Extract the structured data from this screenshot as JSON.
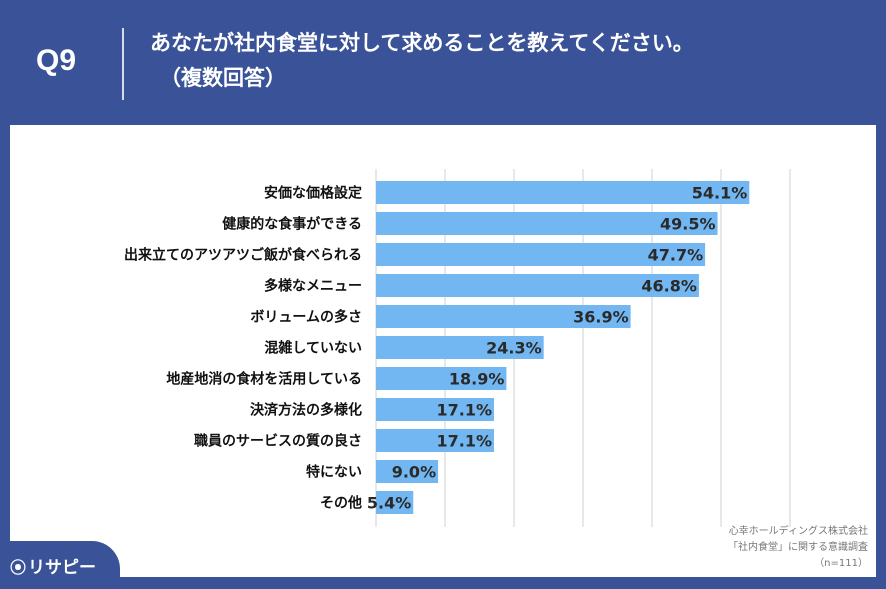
{
  "header": {
    "qnum": "Q9",
    "title": "あなたが社内食堂に対して求めることを教えてください。",
    "subtitle": "（複数回答）"
  },
  "source": {
    "line1": "心幸ホールディングス株式会社",
    "line2": "「社内食堂」に関する意識調査",
    "line3": "（n=111）"
  },
  "logo": {
    "text": "リサピー",
    "icon": "pin-icon"
  },
  "colors": {
    "background": "#3a5297",
    "bar": "#72b7f2",
    "grid": "#d0d0d0"
  },
  "chart_data": {
    "type": "bar",
    "orientation": "horizontal",
    "categories": [
      "安価な価格設定",
      "健康的な食事ができる",
      "出来立てのアツアツご飯が食べられる",
      "多様なメニュー",
      "ボリュームの多さ",
      "混雑していない",
      "地産地消の食材を活用している",
      "決済方法の多様化",
      "職員のサービスの質の良さ",
      "特にない",
      "その他"
    ],
    "values": [
      54.1,
      49.5,
      47.7,
      46.8,
      36.9,
      24.3,
      18.9,
      17.1,
      17.1,
      9.0,
      5.4
    ],
    "value_labels": [
      "54.1%",
      "49.5%",
      "47.7%",
      "46.8%",
      "36.9%",
      "24.3%",
      "18.9%",
      "17.1%",
      "17.1%",
      "9.0%",
      "5.4%"
    ],
    "xlim": [
      0,
      60
    ],
    "grid": true
  }
}
